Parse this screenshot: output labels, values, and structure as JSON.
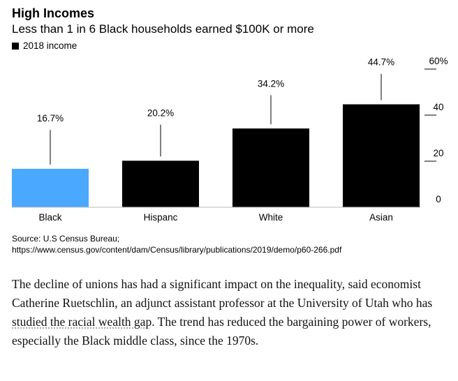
{
  "header": {
    "title": "High Incomes",
    "subtitle": "Less than 1 in 6 Black households earned $100K or more"
  },
  "legend": {
    "label": "2018 income",
    "color": "#000000"
  },
  "chart_data": {
    "type": "bar",
    "title": "High Incomes",
    "subtitle": "Less than 1 in 6 Black households earned $100K or more",
    "categories": [
      "Black",
      "Hispanc",
      "White",
      "Asian"
    ],
    "series": [
      {
        "name": "2018 income",
        "values": [
          16.7,
          20.2,
          34.2,
          44.7
        ],
        "labels": [
          "16.7%",
          "20.2%",
          "34.2%",
          "44.7%"
        ],
        "colors": [
          "#4aa8ff",
          "#000000",
          "#000000",
          "#000000"
        ]
      }
    ],
    "y_ticks": [
      0,
      20,
      40,
      60
    ],
    "y_tick_labels": [
      "0",
      "20",
      "40",
      "60%"
    ],
    "ylim": [
      0,
      60
    ],
    "y_axis_position": "right",
    "grid": false,
    "legend_position": "top-left"
  },
  "source": {
    "line1": "Source: U.S Census Bureau;",
    "line2": "https://www.census.gov/content/dam/Census/library/publications/2019/demo/p60-266.pdf"
  },
  "article": {
    "before_link": "The decline of unions has had a significant impact on the inequality, said economist Catherine Ruetschlin, an adjunct assistant professor at the University of Utah who has ",
    "link_text": "studied the racial wealth gap",
    "after_link": ". The trend has reduced the bargaining power of workers, especially the Black middle class, since the 1970s."
  }
}
